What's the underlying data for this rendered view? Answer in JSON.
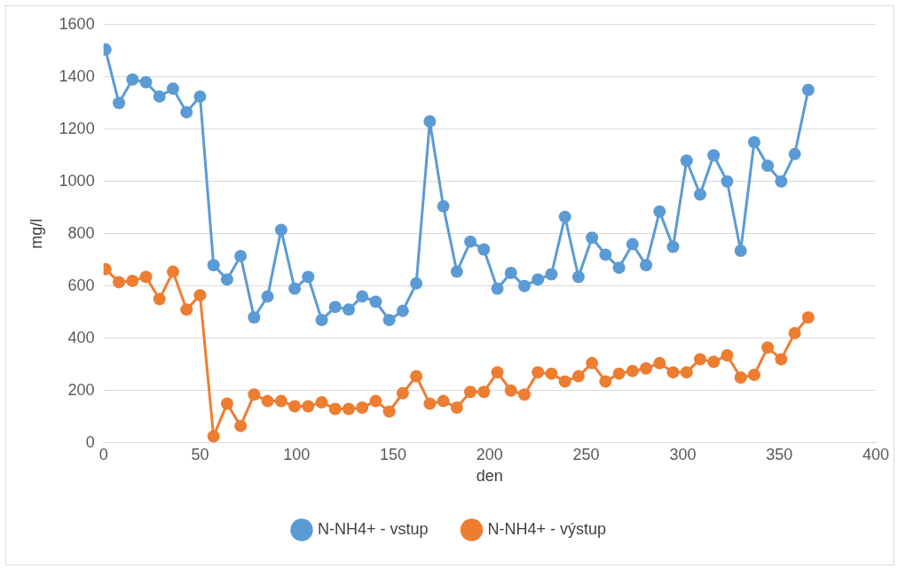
{
  "chart_data": {
    "type": "line",
    "xlabel": "den",
    "ylabel": "mg/l",
    "x": [
      1,
      8,
      15,
      22,
      29,
      36,
      43,
      50,
      57,
      64,
      71,
      78,
      85,
      92,
      99,
      106,
      113,
      120,
      127,
      134,
      141,
      148,
      155,
      162,
      169,
      176,
      183,
      190,
      197,
      204,
      211,
      218,
      225,
      232,
      239,
      246,
      253,
      260,
      267,
      274,
      281,
      288,
      295,
      302,
      309,
      316,
      323,
      330,
      337,
      344,
      351,
      358,
      365
    ],
    "series": [
      {
        "name": "N-NH4+ - vstup",
        "color": "#5b9bd5",
        "values": [
          1505,
          1300,
          1390,
          1380,
          1325,
          1355,
          1265,
          1325,
          680,
          625,
          715,
          480,
          560,
          815,
          590,
          635,
          470,
          520,
          510,
          560,
          540,
          470,
          505,
          610,
          1230,
          905,
          655,
          770,
          740,
          590,
          650,
          600,
          625,
          645,
          865,
          635,
          785,
          720,
          670,
          760,
          680,
          885,
          750,
          1080,
          950,
          1100,
          1000,
          735,
          1150,
          1060,
          1000,
          1105,
          1350
        ]
      },
      {
        "name": "N-NH4+ - výstup",
        "color": "#ed7d31",
        "values": [
          665,
          615,
          620,
          635,
          550,
          655,
          510,
          565,
          25,
          150,
          65,
          185,
          160,
          160,
          140,
          140,
          155,
          130,
          130,
          135,
          160,
          120,
          190,
          255,
          150,
          160,
          135,
          195,
          195,
          270,
          200,
          185,
          270,
          265,
          235,
          255,
          305,
          235,
          265,
          275,
          285,
          305,
          270,
          270,
          320,
          310,
          335,
          250,
          260,
          365,
          320,
          420,
          480
        ]
      }
    ],
    "xlim": [
      0,
      400
    ],
    "xticks": [
      0,
      50,
      100,
      150,
      200,
      250,
      300,
      350,
      400
    ],
    "ylim": [
      0,
      1600
    ],
    "yticks": [
      0,
      200,
      400,
      600,
      800,
      1000,
      1200,
      1400,
      1600
    ],
    "grid": "y",
    "legend": "bottom",
    "marker": "circle",
    "line_style": "solid"
  }
}
